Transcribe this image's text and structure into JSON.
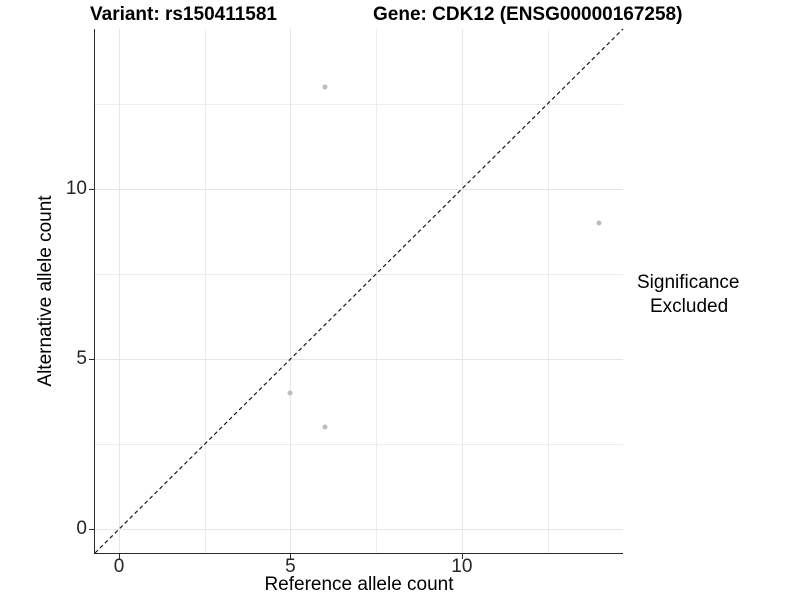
{
  "chart_data": {
    "type": "scatter",
    "titles": {
      "variant": "Variant: rs150411581",
      "gene": "Gene: CDK12 (ENSG00000167258)"
    },
    "xlabel": "Reference allele count",
    "ylabel": "Alternative allele count",
    "xlim": [
      -0.7,
      14.7
    ],
    "ylim": [
      -0.7,
      14.7
    ],
    "x_ticks": [
      0,
      5,
      10
    ],
    "y_ticks": [
      0,
      5,
      10
    ],
    "major_gridlines": [
      0,
      5,
      10
    ],
    "minor_gridlines": [
      2.5,
      7.5,
      12.5
    ],
    "grid": true,
    "legend_position": "right",
    "identity_line": {
      "style": "dashed",
      "from": [
        -0.7,
        -0.7
      ],
      "to": [
        14.7,
        14.7
      ],
      "color": "#1a1a1a"
    },
    "series": [
      {
        "name": "Excluded",
        "color": "#bdbdbd",
        "points": [
          [
            6,
            13
          ],
          [
            14,
            9
          ],
          [
            5,
            4
          ],
          [
            6,
            3
          ]
        ]
      }
    ],
    "legend": {
      "title": "Significance",
      "items": [
        {
          "label": "Excluded",
          "color": "#b3b3b3"
        }
      ]
    }
  }
}
